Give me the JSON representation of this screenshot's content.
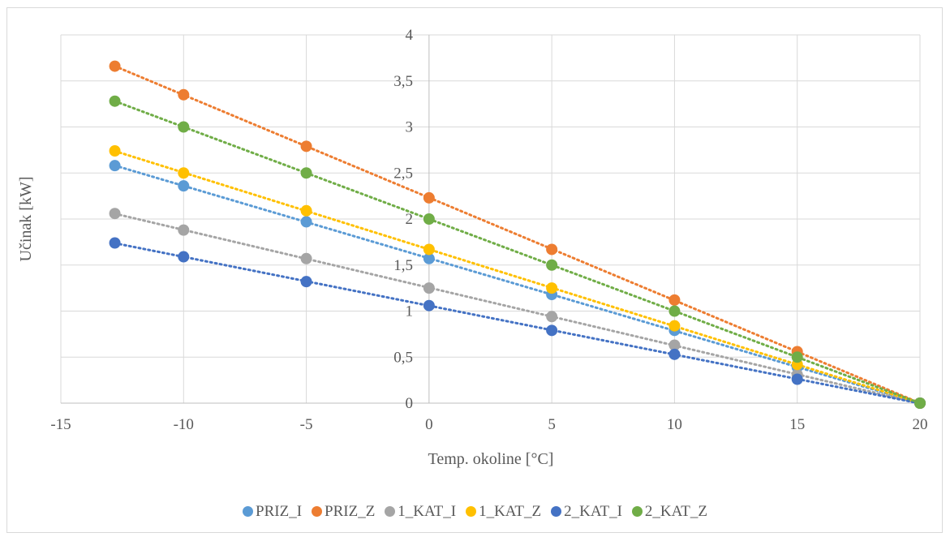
{
  "chart_data": {
    "type": "scatter",
    "title": "",
    "xlabel": "Temp. okoline [°C]",
    "ylabel": "Učinak [kW]",
    "xlim": [
      -15,
      20
    ],
    "ylim": [
      0,
      4
    ],
    "x_ticks": [
      -15,
      -10,
      -5,
      0,
      5,
      10,
      15,
      20
    ],
    "y_ticks": [
      0,
      0.5,
      1,
      1.5,
      2,
      2.5,
      3,
      3.5,
      4
    ],
    "x_tick_labels": [
      "-15",
      "-10",
      "-5",
      "0",
      "5",
      "10",
      "15",
      "20"
    ],
    "y_tick_labels": [
      "0",
      "0,5",
      "1",
      "1,5",
      "2",
      "2,5",
      "3",
      "3,5",
      "4"
    ],
    "grid": true,
    "trendline": "linear-dotted",
    "legend_position": "bottom",
    "x": [
      -12.8,
      -10,
      -5,
      0,
      5,
      10,
      15,
      20
    ],
    "series": [
      {
        "name": "PRIZ_I",
        "color": "#5b9bd5",
        "values": [
          2.58,
          2.36,
          1.97,
          1.57,
          1.18,
          0.79,
          0.39,
          0
        ]
      },
      {
        "name": "PRIZ_Z",
        "color": "#ed7d31",
        "values": [
          3.66,
          3.35,
          2.79,
          2.23,
          1.67,
          1.12,
          0.56,
          0
        ]
      },
      {
        "name": "1_KAT_I",
        "color": "#a5a5a5",
        "values": [
          2.06,
          1.88,
          1.57,
          1.25,
          0.94,
          0.63,
          0.31,
          0
        ]
      },
      {
        "name": "1_KAT_Z",
        "color": "#ffc000",
        "values": [
          2.74,
          2.5,
          2.09,
          1.67,
          1.25,
          0.84,
          0.42,
          0
        ]
      },
      {
        "name": "2_KAT_I",
        "color": "#4472c4",
        "values": [
          1.74,
          1.59,
          1.32,
          1.06,
          0.79,
          0.53,
          0.26,
          0
        ]
      },
      {
        "name": "2_KAT_Z",
        "color": "#70ad47",
        "values": [
          3.28,
          3.0,
          2.5,
          2.0,
          1.5,
          1.0,
          0.5,
          0
        ]
      }
    ]
  }
}
